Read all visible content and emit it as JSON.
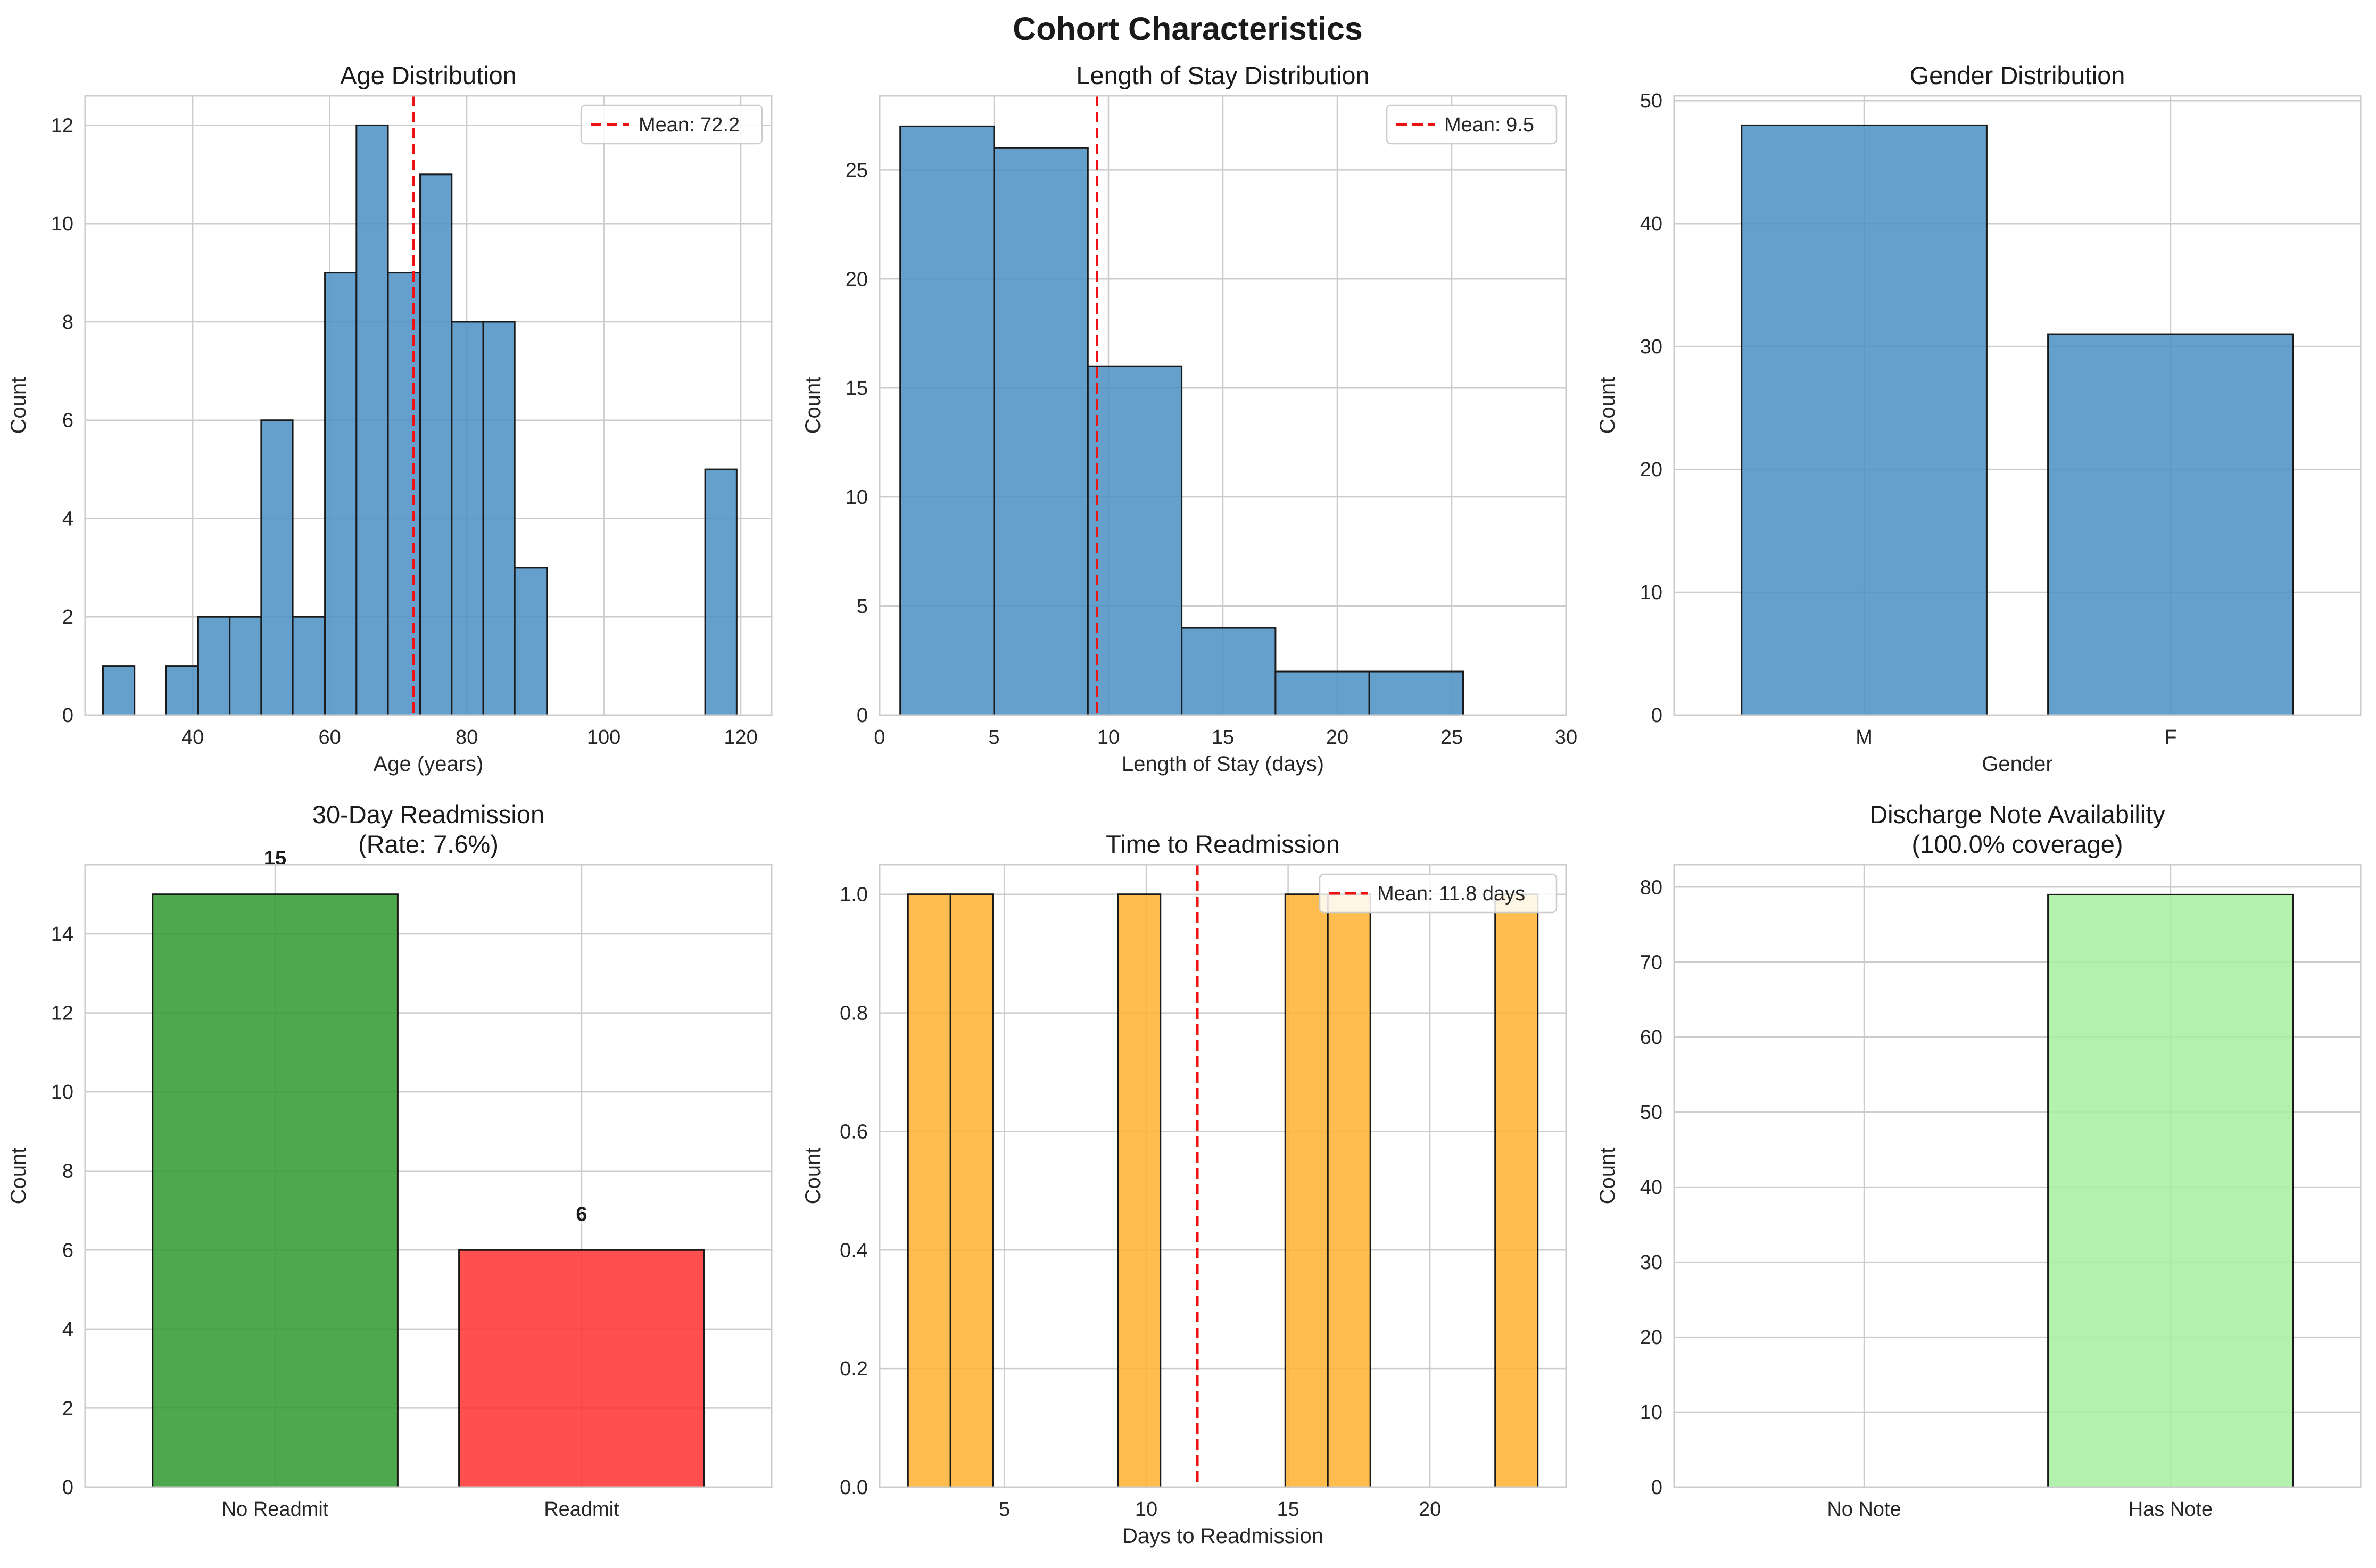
{
  "figure": {
    "suptitle": "Cohort Characteristics"
  },
  "colors": {
    "blue": "#4a8fc4",
    "green": "#2f9a2f",
    "red": "#ff3030",
    "orange": "#ffb230",
    "lightgreen": "#a5f0a0",
    "mean_line": "#ee1111",
    "grid": "#cccccc"
  },
  "chart_data": [
    {
      "id": "age",
      "type": "bar",
      "bar_style": "histogram",
      "title": "Age Distribution",
      "xlabel": "Age (years)",
      "ylabel": "Count",
      "xlim": [
        24.3,
        124.5
      ],
      "ylim": [
        0,
        12.6
      ],
      "xticks": [
        40,
        60,
        80,
        100,
        120
      ],
      "yticks": [
        0,
        2,
        4,
        6,
        8,
        10,
        12
      ],
      "color": "blue",
      "bins": [
        {
          "x0": 26.9,
          "x1": 31.5,
          "value": 1
        },
        {
          "x0": 31.5,
          "x1": 36.1,
          "value": 0
        },
        {
          "x0": 36.1,
          "x1": 40.8,
          "value": 1
        },
        {
          "x0": 40.8,
          "x1": 45.4,
          "value": 2
        },
        {
          "x0": 45.4,
          "x1": 50.0,
          "value": 2
        },
        {
          "x0": 50.0,
          "x1": 54.6,
          "value": 6
        },
        {
          "x0": 54.6,
          "x1": 59.3,
          "value": 2
        },
        {
          "x0": 59.3,
          "x1": 63.9,
          "value": 9
        },
        {
          "x0": 63.9,
          "x1": 68.5,
          "value": 12
        },
        {
          "x0": 68.5,
          "x1": 73.2,
          "value": 9
        },
        {
          "x0": 73.2,
          "x1": 77.8,
          "value": 11
        },
        {
          "x0": 77.8,
          "x1": 82.4,
          "value": 8
        },
        {
          "x0": 82.4,
          "x1": 87.0,
          "value": 8
        },
        {
          "x0": 87.0,
          "x1": 91.7,
          "value": 3
        },
        {
          "x0": 91.7,
          "x1": 96.3,
          "value": 0
        },
        {
          "x0": 96.3,
          "x1": 100.9,
          "value": 0
        },
        {
          "x0": 100.9,
          "x1": 105.6,
          "value": 0
        },
        {
          "x0": 105.6,
          "x1": 110.2,
          "value": 0
        },
        {
          "x0": 110.2,
          "x1": 114.8,
          "value": 0
        },
        {
          "x0": 114.8,
          "x1": 119.4,
          "value": 5
        }
      ],
      "mean": 72.2,
      "legend": "Mean: 72.2",
      "legend_loc": "upper right"
    },
    {
      "id": "los",
      "type": "bar",
      "bar_style": "histogram",
      "title": "Length of Stay Distribution",
      "xlabel": "Length of Stay (days)",
      "ylabel": "Count",
      "xlim": [
        0,
        30
      ],
      "ylim": [
        0,
        28.4
      ],
      "xticks": [
        0,
        5,
        10,
        15,
        20,
        25,
        30
      ],
      "yticks": [
        0,
        5,
        10,
        15,
        20,
        25
      ],
      "color": "blue",
      "bins": [
        {
          "x0": 0.9,
          "x1": 5.0,
          "value": 27
        },
        {
          "x0": 5.0,
          "x1": 9.1,
          "value": 26
        },
        {
          "x0": 9.1,
          "x1": 13.2,
          "value": 16
        },
        {
          "x0": 13.2,
          "x1": 17.3,
          "value": 4
        },
        {
          "x0": 17.3,
          "x1": 21.4,
          "value": 2
        },
        {
          "x0": 21.4,
          "x1": 25.5,
          "value": 2
        },
        {
          "x0": 25.5,
          "x1": 30.0,
          "value": 0
        }
      ],
      "mean": 9.5,
      "legend": "Mean: 9.5",
      "legend_loc": "upper right"
    },
    {
      "id": "gender",
      "type": "bar",
      "title": "Gender Distribution",
      "xlabel": "Gender",
      "ylabel": "Count",
      "ylim": [
        0,
        50.4
      ],
      "yticks": [
        0,
        10,
        20,
        30,
        40,
        50
      ],
      "categories": [
        "M",
        "F"
      ],
      "values": [
        48,
        31
      ],
      "colors": [
        "blue",
        "blue"
      ]
    },
    {
      "id": "readmission",
      "type": "bar",
      "title": "30-Day Readmission\n(Rate: 7.6%)",
      "xlabel": "",
      "ylabel": "Count",
      "ylim": [
        0,
        15.75
      ],
      "yticks": [
        0,
        2,
        4,
        6,
        8,
        10,
        12,
        14
      ],
      "categories": [
        "No Readmit",
        "Readmit"
      ],
      "values": [
        15,
        6
      ],
      "value_labels": [
        "15",
        "6"
      ],
      "colors": [
        "green",
        "red"
      ]
    },
    {
      "id": "time_to_readmit",
      "type": "bar",
      "bar_style": "histogram",
      "title": "Time to Readmission",
      "xlabel": "Days to Readmission",
      "ylabel": "Count",
      "xlim": [
        0.6,
        24.8
      ],
      "ylim": [
        0,
        1.05
      ],
      "xticks": [
        5,
        10,
        15,
        20
      ],
      "yticks": [
        0.0,
        0.2,
        0.4,
        0.6,
        0.8,
        1.0
      ],
      "ytick_labels": [
        "0.0",
        "0.2",
        "0.4",
        "0.6",
        "0.8",
        "1.0"
      ],
      "color": "orange",
      "bins": [
        {
          "x0": 1.6,
          "x1": 3.1,
          "value": 1
        },
        {
          "x0": 3.1,
          "x1": 4.6,
          "value": 1
        },
        {
          "x0": 4.6,
          "x1": 6.1,
          "value": 0
        },
        {
          "x0": 6.1,
          "x1": 7.5,
          "value": 0
        },
        {
          "x0": 7.5,
          "x1": 9.0,
          "value": 0
        },
        {
          "x0": 9.0,
          "x1": 10.5,
          "value": 1
        },
        {
          "x0": 10.5,
          "x1": 12.0,
          "value": 0
        },
        {
          "x0": 12.0,
          "x1": 13.5,
          "value": 0
        },
        {
          "x0": 13.5,
          "x1": 14.9,
          "value": 0
        },
        {
          "x0": 14.9,
          "x1": 16.4,
          "value": 1
        },
        {
          "x0": 16.4,
          "x1": 17.9,
          "value": 1
        },
        {
          "x0": 17.9,
          "x1": 19.4,
          "value": 0
        },
        {
          "x0": 19.4,
          "x1": 20.9,
          "value": 0
        },
        {
          "x0": 20.9,
          "x1": 22.3,
          "value": 0
        },
        {
          "x0": 22.3,
          "x1": 23.8,
          "value": 1
        }
      ],
      "mean": 11.8,
      "legend": "Mean: 11.8 days",
      "legend_loc": "upper right"
    },
    {
      "id": "discharge_note",
      "type": "bar",
      "title": "Discharge Note Availability\n(100.0% coverage)",
      "xlabel": "",
      "ylabel": "Count",
      "ylim": [
        0,
        83
      ],
      "yticks": [
        0,
        10,
        20,
        30,
        40,
        50,
        60,
        70,
        80
      ],
      "categories": [
        "No Note",
        "Has Note"
      ],
      "values": [
        0,
        79
      ],
      "colors": [
        "lightgreen",
        "lightgreen"
      ]
    }
  ]
}
